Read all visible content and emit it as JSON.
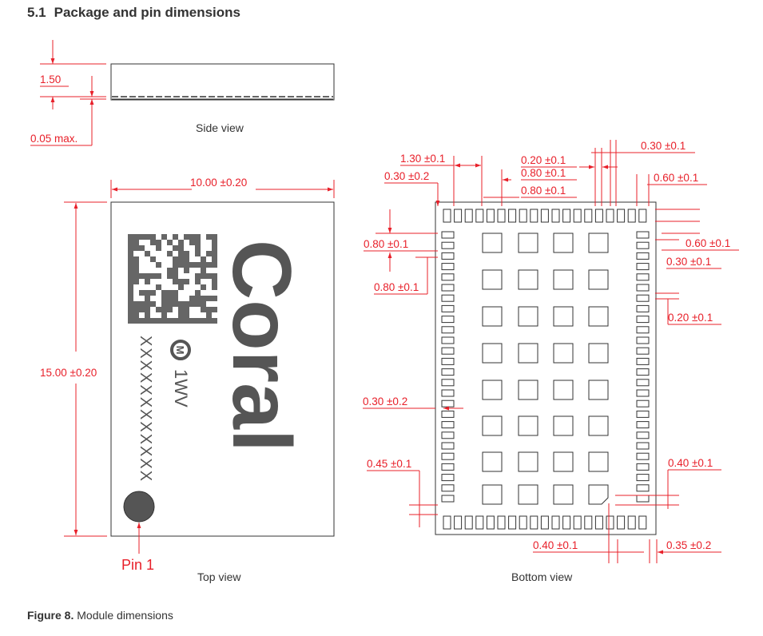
{
  "heading": {
    "number": "5.1",
    "title": "Package and pin dimensions"
  },
  "caption": {
    "label": "Figure 8.",
    "text": "Module dimensions"
  },
  "views": {
    "side": "Side view",
    "top": "Top view",
    "bottom": "Bottom view"
  },
  "side_dims": {
    "height": "1.50",
    "gap": "0.05 max."
  },
  "top_dims": {
    "width": "10.00 ±0.20",
    "height": "15.00 ±0.20",
    "pin1": "Pin 1"
  },
  "module_marking": {
    "brand": "Coral",
    "serial": "XXXXXXXXXXXX",
    "cert_logo": "M",
    "cert_code": "1WV"
  },
  "bottom_dims": {
    "d1": "1.30 ±0.1",
    "d2": "0.30 ±0.2",
    "d3": "0.20 ±0.1",
    "d4": "0.80 ±0.1",
    "d5": "0.80 ±0.1",
    "d6": "0.30 ±0.1",
    "d7": "0.60 ±0.1",
    "d8": "0.80 ±0.1",
    "d9": "0.80 ±0.1",
    "d10": "0.60 ±0.1",
    "d11": "0.30 ±0.1",
    "d12": "0.20 ±0.1",
    "d13": "0.30 ±0.2",
    "d14": "0.45 ±0.1",
    "d15": "0.40 ±0.1",
    "d16": "0.40 ±0.1",
    "d17": "0.35 ±0.2"
  },
  "colors": {
    "dimension": "#e8202a",
    "outline": "#333333",
    "marking": "#555555"
  }
}
